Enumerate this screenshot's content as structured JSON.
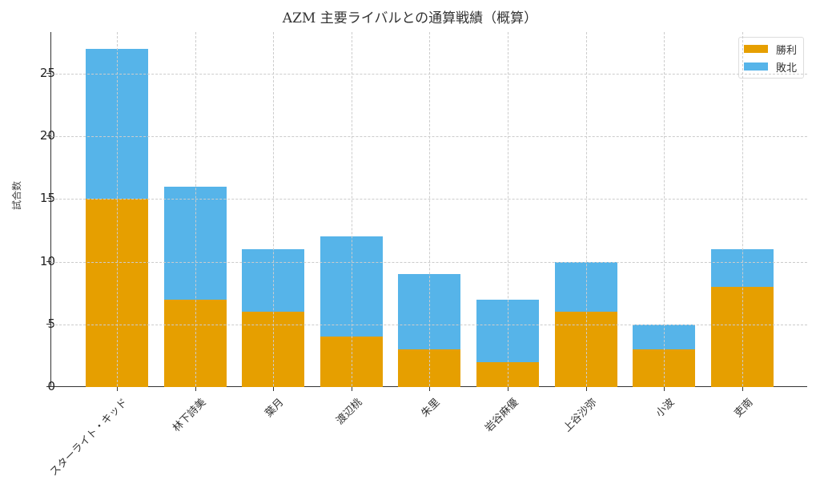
{
  "chart_data": {
    "type": "bar",
    "stacked": true,
    "title": "AZM 主要ライバルとの通算戦績（概算）",
    "xlabel": "",
    "ylabel": "試合数",
    "ylim": [
      0,
      28.35
    ],
    "yticks": [
      0,
      5,
      10,
      15,
      20,
      25
    ],
    "grid": true,
    "legend_position": "upper right",
    "categories": [
      "スターライト・キッド",
      "林下詩美",
      "葉月",
      "渡辺桃",
      "朱里",
      "岩谷麻優",
      "上谷沙弥",
      "小波",
      "吏南"
    ],
    "series": [
      {
        "name": "勝利",
        "color": "#E69F00",
        "values": [
          15,
          7,
          6,
          4,
          3,
          2,
          6,
          3,
          8
        ]
      },
      {
        "name": "敗北",
        "color": "#56B4E9",
        "values": [
          12,
          9,
          5,
          8,
          6,
          5,
          4,
          2,
          3
        ]
      }
    ]
  },
  "legend": {
    "win": "勝利",
    "loss": "敗北"
  },
  "yticklabels": [
    "0",
    "5",
    "10",
    "15",
    "20",
    "25"
  ]
}
